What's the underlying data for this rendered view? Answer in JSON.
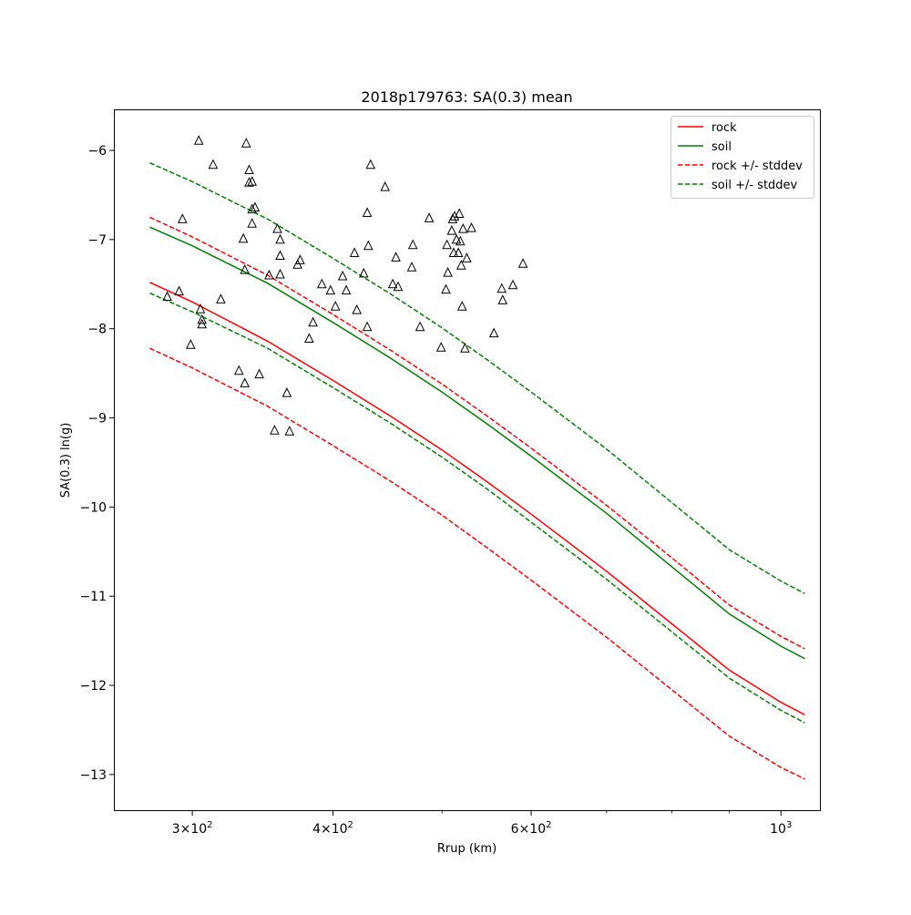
{
  "chart_data": {
    "type": "line",
    "title": "2018p179763: SA(0.3) mean",
    "xlabel": "Rrup (km)",
    "ylabel": "SA(0.3) ln(g)",
    "xscale": "log",
    "xlim": [
      256,
      1083
    ],
    "ylim": [
      -13.4,
      -5.55
    ],
    "x_ticks": [
      {
        "value": 300,
        "base": "3×10",
        "exp": "2"
      },
      {
        "value": 400,
        "base": "4×10",
        "exp": "2"
      },
      {
        "value": 600,
        "base": "6×10",
        "exp": "2"
      },
      {
        "value": 1000,
        "base": "10",
        "exp": "3"
      }
    ],
    "y_ticks": [
      {
        "value": -6,
        "label": "−6"
      },
      {
        "value": -7,
        "label": "−7"
      },
      {
        "value": -8,
        "label": "−8"
      },
      {
        "value": -9,
        "label": "−9"
      },
      {
        "value": -10,
        "label": "−10"
      },
      {
        "value": -11,
        "label": "−11"
      },
      {
        "value": -12,
        "label": "−12"
      },
      {
        "value": -13,
        "label": "−13"
      }
    ],
    "grid": false,
    "legend_position": "top-right",
    "x": [
      275,
      300,
      350,
      400,
      450,
      500,
      550,
      600,
      700,
      800,
      900,
      1000,
      1050
    ],
    "series": [
      {
        "name": "rock",
        "style": "solid",
        "color": "#ff0000",
        "values": [
          -7.48,
          -7.7,
          -8.14,
          -8.58,
          -8.98,
          -9.36,
          -9.73,
          -10.08,
          -10.72,
          -11.31,
          -11.83,
          -12.19,
          -12.33
        ]
      },
      {
        "name": "soil",
        "style": "solid",
        "color": "#008000",
        "values": [
          -6.86,
          -7.07,
          -7.49,
          -7.93,
          -8.33,
          -8.71,
          -9.08,
          -9.43,
          -10.07,
          -10.67,
          -11.2,
          -11.56,
          -11.7
        ]
      },
      {
        "name": "rock +/- stddev",
        "style": "dashed",
        "color": "#ff0000",
        "values": [
          -6.75,
          -6.97,
          -7.4,
          -7.84,
          -8.24,
          -8.62,
          -8.99,
          -9.34,
          -9.98,
          -10.57,
          -11.1,
          -11.45,
          -11.59
        ]
      },
      {
        "name": "rock +/- stddev",
        "style": "dashed",
        "color": "#ff0000",
        "in_legend": false,
        "values": [
          -8.22,
          -8.44,
          -8.87,
          -9.31,
          -9.71,
          -10.09,
          -10.47,
          -10.82,
          -11.46,
          -12.05,
          -12.57,
          -12.92,
          -13.05
        ]
      },
      {
        "name": "soil +/- stddev",
        "style": "dashed",
        "color": "#008000",
        "values": [
          -6.14,
          -6.35,
          -6.77,
          -7.21,
          -7.61,
          -7.99,
          -8.36,
          -8.71,
          -9.35,
          -9.95,
          -10.48,
          -10.83,
          -10.97
        ]
      },
      {
        "name": "soil +/- stddev",
        "style": "dashed",
        "color": "#008000",
        "in_legend": false,
        "values": [
          -7.6,
          -7.81,
          -8.22,
          -8.66,
          -9.06,
          -9.44,
          -9.81,
          -10.17,
          -10.81,
          -11.4,
          -11.92,
          -12.28,
          -12.42
        ]
      }
    ],
    "observations": {
      "marker": "triangle-open",
      "color": "#000000",
      "points": [
        [
          285,
          -7.64
        ],
        [
          292,
          -7.58
        ],
        [
          294,
          -6.77
        ],
        [
          299,
          -8.18
        ],
        [
          304,
          -5.89
        ],
        [
          305,
          -7.78
        ],
        [
          306,
          -7.95
        ],
        [
          306,
          -7.9
        ],
        [
          313,
          -6.16
        ],
        [
          318,
          -7.67
        ],
        [
          330,
          -8.47
        ],
        [
          333,
          -6.99
        ],
        [
          334,
          -8.61
        ],
        [
          334,
          -7.34
        ],
        [
          335,
          -5.92
        ],
        [
          337,
          -6.22
        ],
        [
          337,
          -6.36
        ],
        [
          339,
          -6.82
        ],
        [
          339,
          -6.66
        ],
        [
          339,
          -6.35
        ],
        [
          341,
          -6.64
        ],
        [
          344,
          -8.51
        ],
        [
          351,
          -7.4
        ],
        [
          355,
          -9.14
        ],
        [
          357,
          -6.88
        ],
        [
          359,
          -7.18
        ],
        [
          359,
          -7.0
        ],
        [
          359,
          -7.39
        ],
        [
          364,
          -8.72
        ],
        [
          366,
          -9.15
        ],
        [
          372,
          -7.28
        ],
        [
          374,
          -7.23
        ],
        [
          381,
          -8.11
        ],
        [
          384,
          -7.93
        ],
        [
          391,
          -7.5
        ],
        [
          398,
          -7.57
        ],
        [
          402,
          -7.75
        ],
        [
          408,
          -7.41
        ],
        [
          411,
          -7.57
        ],
        [
          418,
          -7.15
        ],
        [
          420,
          -7.79
        ],
        [
          426,
          -7.38
        ],
        [
          429,
          -7.98
        ],
        [
          429,
          -6.7
        ],
        [
          430,
          -7.07
        ],
        [
          432,
          -6.16
        ],
        [
          445,
          -6.41
        ],
        [
          452,
          -7.5
        ],
        [
          455,
          -7.2
        ],
        [
          457,
          -7.53
        ],
        [
          470,
          -7.31
        ],
        [
          471,
          -7.06
        ],
        [
          478,
          -7.98
        ],
        [
          487,
          -6.76
        ],
        [
          499,
          -8.21
        ],
        [
          504,
          -7.56
        ],
        [
          505,
          -7.06
        ],
        [
          506,
          -7.37
        ],
        [
          510,
          -6.9
        ],
        [
          511,
          -6.77
        ],
        [
          512,
          -7.15
        ],
        [
          513,
          -6.74
        ],
        [
          515,
          -7.0
        ],
        [
          517,
          -7.15
        ],
        [
          518,
          -6.71
        ],
        [
          519,
          -7.02
        ],
        [
          520,
          -7.29
        ],
        [
          521,
          -7.75
        ],
        [
          522,
          -6.88
        ],
        [
          524,
          -8.22
        ],
        [
          526,
          -7.21
        ],
        [
          531,
          -6.87
        ],
        [
          556,
          -8.05
        ],
        [
          565,
          -7.55
        ],
        [
          566,
          -7.68
        ],
        [
          578,
          -7.51
        ],
        [
          590,
          -7.27
        ]
      ]
    }
  }
}
